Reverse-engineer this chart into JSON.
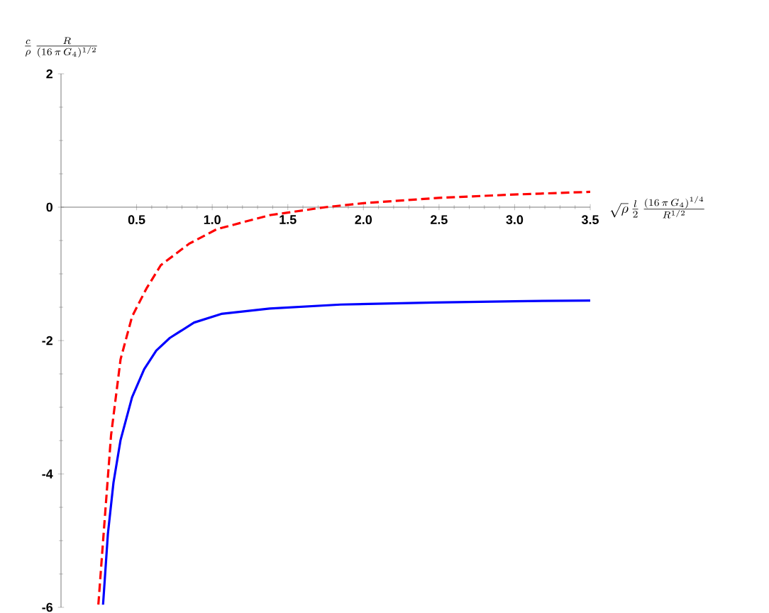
{
  "chart_data": {
    "type": "line",
    "xlabel": "\\sqrt{\\rho}\\,\\frac{l}{2}\\,\\frac{(16\\,\\pi\\,G_4)^{1/4}}{R^{1/2}}",
    "ylabel": "\\frac{c}{\\rho}\\,\\frac{R}{(16\\,\\pi\\,G_4)^{1/2}}",
    "xlim": [
      0,
      3.5
    ],
    "ylim": [
      -6,
      2
    ],
    "xticks": [
      0.5,
      {
        "value": 1,
        "label": "1.0"
      },
      1.5,
      {
        "value": 2,
        "label": "2.0"
      },
      2.5,
      {
        "value": 3,
        "label": "3.0"
      },
      3.5
    ],
    "yticks": [
      -6,
      -4,
      -2,
      0,
      2
    ],
    "series": [
      {
        "color": "#0000ff",
        "line_style": "solid",
        "x": [
          0.278,
          0.31,
          0.347,
          0.394,
          0.47,
          0.55,
          0.63,
          0.72,
          0.88,
          1.06,
          1.38,
          1.85,
          2.47,
          3.0,
          3.5
        ],
        "values": [
          -5.96,
          -4.9,
          -4.13,
          -3.49,
          -2.85,
          -2.43,
          -2.15,
          -1.96,
          -1.73,
          -1.6,
          -1.52,
          -1.46,
          -1.43,
          -1.41,
          -1.4
        ]
      },
      {
        "color": "#ff0000",
        "line_style": "dashed",
        "x": [
          0.247,
          0.284,
          0.331,
          0.394,
          0.47,
          0.565,
          0.66,
          0.846,
          1.03,
          1.38,
          1.75,
          2.0,
          2.5,
          3.0,
          3.5
        ],
        "values": [
          -5.96,
          -4.83,
          -3.42,
          -2.28,
          -1.64,
          -1.22,
          -0.87,
          -0.55,
          -0.33,
          -0.12,
          0.0,
          0.06,
          0.14,
          0.19,
          0.23
        ]
      }
    ]
  }
}
